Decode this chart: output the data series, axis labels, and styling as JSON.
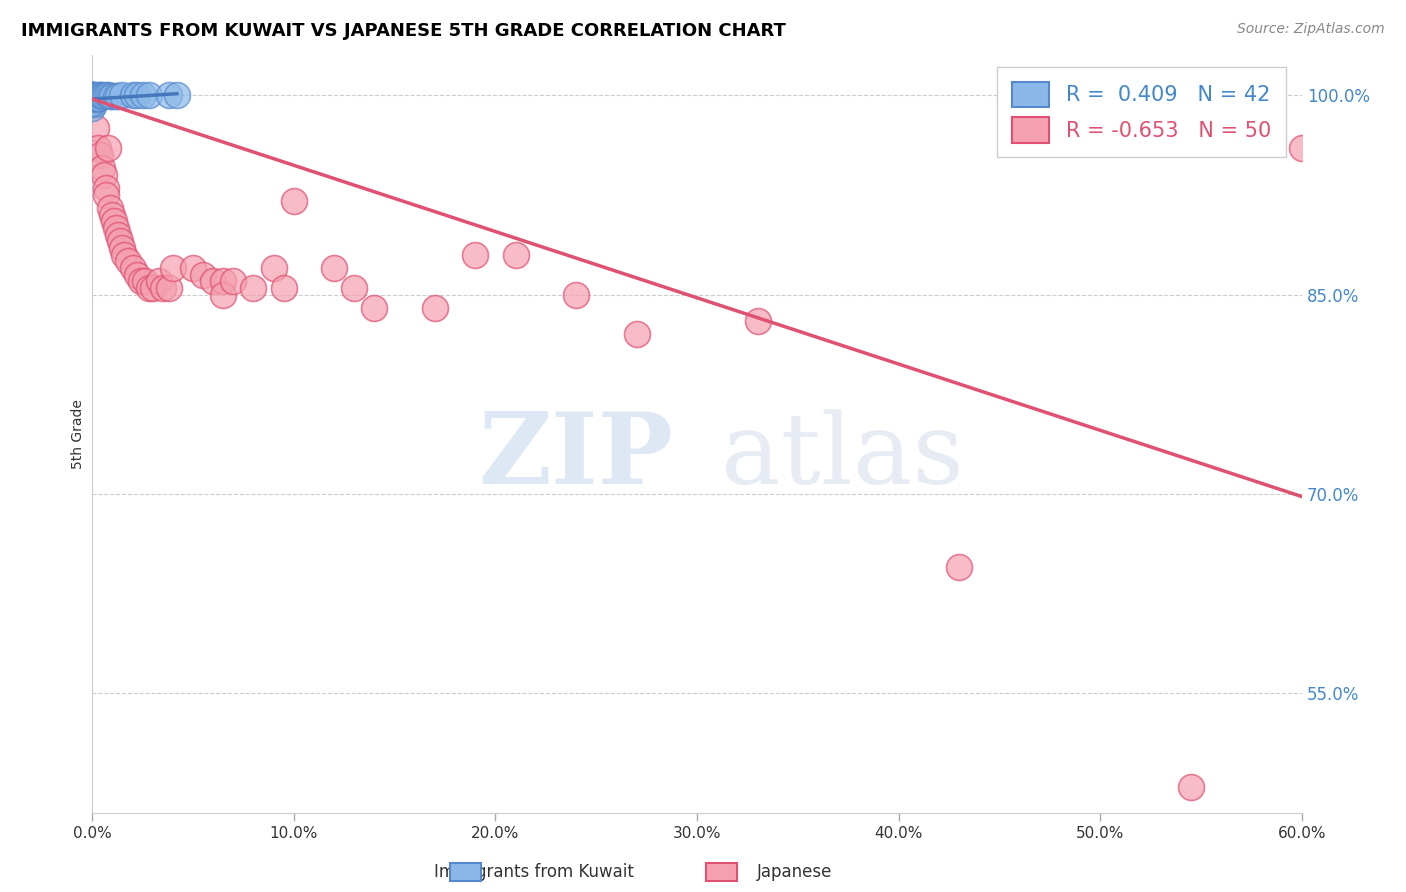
{
  "title": "IMMIGRANTS FROM KUWAIT VS JAPANESE 5TH GRADE CORRELATION CHART",
  "source": "Source: ZipAtlas.com",
  "xlabel_ticks": [
    "0.0%",
    "10.0%",
    "20.0%",
    "30.0%",
    "40.0%",
    "50.0%",
    "60.0%"
  ],
  "ylabel_ticks": [
    "100.0%",
    "85.0%",
    "70.0%",
    "55.0%"
  ],
  "ylabel_label": "5th Grade",
  "xlim": [
    0.0,
    0.6
  ],
  "ylim": [
    0.46,
    1.03
  ],
  "legend_label1": "Immigrants from Kuwait",
  "legend_label2": "Japanese",
  "blue_color": "#8BB8E8",
  "pink_color": "#F4A0B0",
  "blue_edge_color": "#5588CC",
  "pink_edge_color": "#E05070",
  "blue_line_color": "#4477BB",
  "pink_line_color": "#E05070",
  "watermark_zip": "ZIP",
  "watermark_atlas": "atlas",
  "blue_dots": [
    [
      0.0,
      1.0
    ],
    [
      0.0,
      1.0
    ],
    [
      0.0,
      0.995
    ],
    [
      0.0,
      0.99
    ],
    [
      0.0,
      1.0
    ],
    [
      0.0,
      1.0
    ],
    [
      0.0,
      1.0
    ],
    [
      0.0,
      0.998
    ],
    [
      0.001,
      0.997
    ],
    [
      0.001,
      0.995
    ],
    [
      0.001,
      0.999
    ],
    [
      0.0,
      0.996
    ],
    [
      0.001,
      0.993
    ],
    [
      0.0,
      0.994
    ],
    [
      0.001,
      1.0
    ],
    [
      0.002,
      0.998
    ],
    [
      0.002,
      1.0
    ],
    [
      0.001,
      0.999
    ],
    [
      0.003,
      0.999
    ],
    [
      0.002,
      0.997
    ],
    [
      0.003,
      0.998
    ],
    [
      0.002,
      0.998
    ],
    [
      0.004,
      0.999
    ],
    [
      0.003,
      0.998
    ],
    [
      0.004,
      1.0
    ],
    [
      0.004,
      1.0
    ],
    [
      0.005,
      1.0
    ],
    [
      0.005,
      0.999
    ],
    [
      0.006,
      0.999
    ],
    [
      0.007,
      1.0
    ],
    [
      0.008,
      1.0
    ],
    [
      0.009,
      0.999
    ],
    [
      0.01,
      0.999
    ],
    [
      0.012,
      0.999
    ],
    [
      0.013,
      0.999
    ],
    [
      0.015,
      1.0
    ],
    [
      0.02,
      1.0
    ],
    [
      0.022,
      1.0
    ],
    [
      0.025,
      1.0
    ],
    [
      0.028,
      1.0
    ],
    [
      0.038,
      1.0
    ],
    [
      0.042,
      1.0
    ]
  ],
  "pink_dots": [
    [
      0.0,
      0.995
    ],
    [
      0.002,
      0.975
    ],
    [
      0.003,
      0.96
    ],
    [
      0.004,
      0.955
    ],
    [
      0.005,
      0.945
    ],
    [
      0.006,
      0.94
    ],
    [
      0.007,
      0.93
    ],
    [
      0.007,
      0.925
    ],
    [
      0.008,
      0.96
    ],
    [
      0.009,
      0.915
    ],
    [
      0.01,
      0.91
    ],
    [
      0.011,
      0.905
    ],
    [
      0.012,
      0.9
    ],
    [
      0.013,
      0.895
    ],
    [
      0.014,
      0.89
    ],
    [
      0.015,
      0.885
    ],
    [
      0.016,
      0.88
    ],
    [
      0.018,
      0.875
    ],
    [
      0.02,
      0.87
    ],
    [
      0.022,
      0.865
    ],
    [
      0.024,
      0.86
    ],
    [
      0.026,
      0.86
    ],
    [
      0.028,
      0.855
    ],
    [
      0.03,
      0.855
    ],
    [
      0.033,
      0.86
    ],
    [
      0.035,
      0.855
    ],
    [
      0.038,
      0.855
    ],
    [
      0.04,
      0.87
    ],
    [
      0.05,
      0.87
    ],
    [
      0.055,
      0.865
    ],
    [
      0.06,
      0.86
    ],
    [
      0.065,
      0.86
    ],
    [
      0.065,
      0.85
    ],
    [
      0.07,
      0.86
    ],
    [
      0.08,
      0.855
    ],
    [
      0.09,
      0.87
    ],
    [
      0.095,
      0.855
    ],
    [
      0.1,
      0.92
    ],
    [
      0.12,
      0.87
    ],
    [
      0.13,
      0.855
    ],
    [
      0.14,
      0.84
    ],
    [
      0.17,
      0.84
    ],
    [
      0.19,
      0.88
    ],
    [
      0.21,
      0.88
    ],
    [
      0.24,
      0.85
    ],
    [
      0.27,
      0.82
    ],
    [
      0.33,
      0.83
    ],
    [
      0.43,
      0.645
    ],
    [
      0.545,
      0.48
    ],
    [
      0.6,
      0.96
    ]
  ],
  "blue_trendline_x": [
    0.0,
    0.042
  ],
  "blue_trendline_y": [
    0.997,
    1.001
  ],
  "pink_trendline_x": [
    0.0,
    0.6
  ],
  "pink_trendline_y": [
    0.997,
    0.698
  ]
}
